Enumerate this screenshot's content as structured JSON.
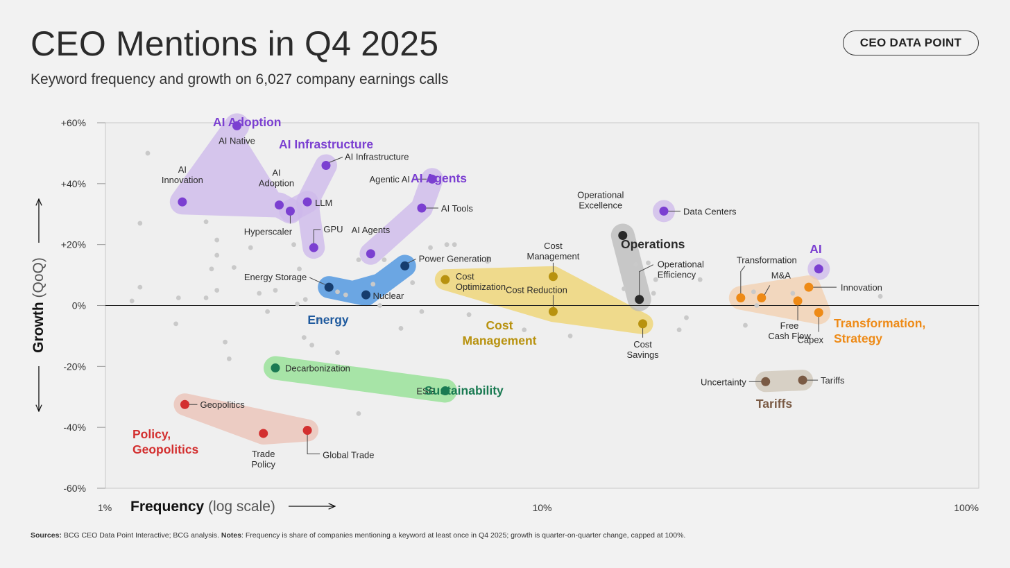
{
  "header": {
    "title": "CEO Mentions in Q4 2025",
    "subtitle": "Keyword frequency and growth on 6,027 company earnings calls",
    "badge": "CEO DATA POINT"
  },
  "footnote": {
    "sources_label": "Sources:",
    "sources_text": " BCG CEO Data Point Interactive; BCG analysis. ",
    "notes_label": "Notes",
    "notes_text": ": Frequency is share of companies mentioning a keyword at least once in Q4 2025; growth is quarter-on-quarter change, capped at 100%."
  },
  "chart_data": {
    "type": "scatter",
    "title": "CEO Mentions in Q4 2025",
    "xlabel": "Frequency",
    "xlabel_note": "(log scale)",
    "x_scale": "log",
    "xlim": [
      1,
      100
    ],
    "x_ticks": [
      {
        "value": 1,
        "label": "1%"
      },
      {
        "value": 10,
        "label": "10%"
      },
      {
        "value": 100,
        "label": "100%"
      }
    ],
    "ylabel": "Growth",
    "ylabel_note": "(QoQ)",
    "ylim": [
      -60,
      60
    ],
    "y_ticks": [
      {
        "value": 60,
        "label": "+60%"
      },
      {
        "value": 40,
        "label": "+40%"
      },
      {
        "value": 20,
        "label": "+20%"
      },
      {
        "value": 0,
        "label": "0%"
      },
      {
        "value": -20,
        "label": "-20%"
      },
      {
        "value": -40,
        "label": "-40%"
      },
      {
        "value": -60,
        "label": "-60%"
      }
    ],
    "groups": [
      {
        "name": "AI Adoption",
        "label_lines": [
          "AI Adoption"
        ],
        "color": "#7b3fd1",
        "fill": "#cdb8eb",
        "label_anchor": "start"
      },
      {
        "name": "AI Infrastructure",
        "label_lines": [
          "AI Infrastructure"
        ],
        "color": "#7b3fd1",
        "fill": "#cdb8eb",
        "label_anchor": "start"
      },
      {
        "name": "AI Agents",
        "label_lines": [
          "AI Agents"
        ],
        "color": "#7b3fd1",
        "fill": "#cdb8eb",
        "label_anchor": "start"
      },
      {
        "name": "AI",
        "label_lines": [
          "AI"
        ],
        "color": "#7b3fd1",
        "fill": "#cdb8eb",
        "label_anchor": "middle"
      },
      {
        "name": "Energy",
        "label_lines": [
          "Energy"
        ],
        "color": "#1f5a9e",
        "fill": "#3f8ee0",
        "label_anchor": "middle"
      },
      {
        "name": "Cost Management",
        "label_lines": [
          "Cost",
          "Management"
        ],
        "color": "#b8920f",
        "fill": "#f0d36b",
        "label_anchor": "middle"
      },
      {
        "name": "Operations",
        "label_lines": [
          "Operations"
        ],
        "color": "#2a2a2a",
        "fill": "#b9b9b9",
        "label_anchor": "start"
      },
      {
        "name": "Transformation, Strategy",
        "label_lines": [
          "Transformation,",
          "Strategy"
        ],
        "color": "#ee8a16",
        "fill": "#f3cfae",
        "label_anchor": "start"
      },
      {
        "name": "Sustainability",
        "label_lines": [
          "Sustainability"
        ],
        "color": "#1a7a52",
        "fill": "#8fe08f",
        "label_anchor": "start"
      },
      {
        "name": "Tariffs",
        "label_lines": [
          "Tariffs"
        ],
        "color": "#7a5a44",
        "fill": "#cfc6b7",
        "label_anchor": "middle"
      },
      {
        "name": "Policy, Geopolitics",
        "label_lines": [
          "Policy,",
          "Geopolitics"
        ],
        "color": "#d32f2f",
        "fill": "#ecc1b5",
        "label_anchor": "start"
      }
    ],
    "series": [
      {
        "name": "AI Native",
        "group": "AI Adoption",
        "x": 2.0,
        "y": 59,
        "color": "#7b3fd1"
      },
      {
        "name": "AI Innovation",
        "group": "AI Adoption",
        "x": 1.5,
        "y": 34,
        "color": "#7b3fd1"
      },
      {
        "name": "AI Adoption",
        "group": "AI Adoption",
        "x": 2.5,
        "y": 33,
        "color": "#7b3fd1"
      },
      {
        "name": "Hyperscaler",
        "group": "AI Adoption",
        "x": 2.65,
        "y": 31,
        "color": "#7b3fd1"
      },
      {
        "name": "AI Infrastructure",
        "group": "AI Infrastructure",
        "x": 3.2,
        "y": 46,
        "color": "#7b3fd1"
      },
      {
        "name": "LLM",
        "group": "AI Infrastructure",
        "x": 2.9,
        "y": 34,
        "color": "#7b3fd1"
      },
      {
        "name": "GPU",
        "group": "AI Infrastructure",
        "x": 3.0,
        "y": 19,
        "color": "#7b3fd1"
      },
      {
        "name": "Agentic AI",
        "group": "AI Agents",
        "x": 5.6,
        "y": 41.5,
        "color": "#7b3fd1"
      },
      {
        "name": "AI Tools",
        "group": "AI Agents",
        "x": 5.3,
        "y": 32,
        "color": "#7b3fd1"
      },
      {
        "name": "AI Agents",
        "group": "AI Agents",
        "x": 4.05,
        "y": 17,
        "color": "#7b3fd1"
      },
      {
        "name": "Data Centers",
        "group": "AI",
        "x": 19.0,
        "y": 31,
        "color": "#7b3fd1"
      },
      {
        "name": "AI",
        "group": "AI",
        "x": 43.0,
        "y": 12,
        "color": "#7b3fd1"
      },
      {
        "name": "Power Generation",
        "group": "Energy",
        "x": 4.85,
        "y": 13,
        "color": "#163d6e"
      },
      {
        "name": "Energy Storage",
        "group": "Energy",
        "x": 3.25,
        "y": 6,
        "color": "#163d6e"
      },
      {
        "name": "Nuclear",
        "group": "Energy",
        "x": 3.95,
        "y": 3.5,
        "color": "#163d6e"
      },
      {
        "name": "Cost Optimization",
        "group": "Cost Management",
        "x": 6.0,
        "y": 8.5,
        "color": "#b8920f"
      },
      {
        "name": "Cost Management",
        "group": "Cost Management",
        "x": 10.6,
        "y": 9.5,
        "color": "#b8920f"
      },
      {
        "name": "Cost Reduction",
        "group": "Cost Management",
        "x": 10.6,
        "y": -2,
        "color": "#b8920f"
      },
      {
        "name": "Cost Savings",
        "group": "Cost Management",
        "x": 17.0,
        "y": -6,
        "color": "#b8920f"
      },
      {
        "name": "Operational Excellence",
        "group": "Operations",
        "x": 15.3,
        "y": 23,
        "color": "#2a2a2a"
      },
      {
        "name": "Operational Efficiency",
        "group": "Operations",
        "x": 16.7,
        "y": 2,
        "color": "#2a2a2a"
      },
      {
        "name": "Transformation",
        "group": "Transformation, Strategy",
        "x": 28.5,
        "y": 2.5,
        "color": "#ee8a16"
      },
      {
        "name": "M&A",
        "group": "Transformation, Strategy",
        "x": 31.8,
        "y": 2.5,
        "color": "#ee8a16"
      },
      {
        "name": "Free Cash Flow",
        "group": "Transformation, Strategy",
        "x": 38.5,
        "y": 1.5,
        "color": "#ee8a16"
      },
      {
        "name": "Innovation",
        "group": "Transformation, Strategy",
        "x": 40.8,
        "y": 6,
        "color": "#ee8a16"
      },
      {
        "name": "Capex",
        "group": "Transformation, Strategy",
        "x": 43.0,
        "y": -2.3,
        "color": "#ee8a16"
      },
      {
        "name": "Decarbonization",
        "group": "Sustainability",
        "x": 2.45,
        "y": -20.5,
        "color": "#1a7a52"
      },
      {
        "name": "ESG",
        "group": "Sustainability",
        "x": 6.0,
        "y": -28,
        "color": "#1a7a52"
      },
      {
        "name": "Uncertainty",
        "group": "Tariffs",
        "x": 32.5,
        "y": -25,
        "color": "#7a5a44"
      },
      {
        "name": "Tariffs",
        "group": "Tariffs",
        "x": 39.5,
        "y": -24.5,
        "color": "#7a5a44"
      },
      {
        "name": "Geopolitics",
        "group": "Policy, Geopolitics",
        "x": 1.52,
        "y": -32.5,
        "color": "#d32f2f"
      },
      {
        "name": "Trade Policy",
        "group": "Policy, Geopolitics",
        "x": 2.3,
        "y": -42,
        "color": "#d32f2f"
      },
      {
        "name": "Global Trade",
        "group": "Policy, Geopolitics",
        "x": 2.9,
        "y": -41,
        "color": "#d32f2f"
      }
    ],
    "background_points": [
      {
        "x": 1.25,
        "y": 50
      },
      {
        "x": 1.2,
        "y": 27
      },
      {
        "x": 1.2,
        "y": 6
      },
      {
        "x": 1.15,
        "y": 1.5
      },
      {
        "x": 1.47,
        "y": 2.5
      },
      {
        "x": 1.45,
        "y": -6
      },
      {
        "x": 1.7,
        "y": 27.5
      },
      {
        "x": 1.7,
        "y": 2.5
      },
      {
        "x": 1.75,
        "y": 12
      },
      {
        "x": 1.8,
        "y": 21.5
      },
      {
        "x": 1.8,
        "y": 16.5
      },
      {
        "x": 1.8,
        "y": 5
      },
      {
        "x": 1.88,
        "y": -12
      },
      {
        "x": 1.92,
        "y": -17.5
      },
      {
        "x": 1.97,
        "y": 12.5
      },
      {
        "x": 2.15,
        "y": 19
      },
      {
        "x": 2.25,
        "y": 4
      },
      {
        "x": 2.35,
        "y": -2
      },
      {
        "x": 2.45,
        "y": 5
      },
      {
        "x": 2.7,
        "y": 20
      },
      {
        "x": 2.75,
        "y": 0.5
      },
      {
        "x": 2.78,
        "y": 12
      },
      {
        "x": 2.85,
        "y": -10.5
      },
      {
        "x": 2.87,
        "y": 2
      },
      {
        "x": 2.97,
        "y": -13
      },
      {
        "x": 3.07,
        "y": -4.5
      },
      {
        "x": 3.4,
        "y": 4.5
      },
      {
        "x": 3.4,
        "y": -15.5
      },
      {
        "x": 3.55,
        "y": 3.5
      },
      {
        "x": 3.8,
        "y": 15
      },
      {
        "x": 3.8,
        "y": -35.5
      },
      {
        "x": 4.1,
        "y": 7
      },
      {
        "x": 4.25,
        "y": 0
      },
      {
        "x": 4.35,
        "y": 15
      },
      {
        "x": 4.75,
        "y": -7.5
      },
      {
        "x": 5.05,
        "y": 7.5
      },
      {
        "x": 5.3,
        "y": -2
      },
      {
        "x": 5.55,
        "y": 19
      },
      {
        "x": 6.05,
        "y": 20
      },
      {
        "x": 6.3,
        "y": 20
      },
      {
        "x": 6.8,
        "y": -3
      },
      {
        "x": 7.5,
        "y": 14.5
      },
      {
        "x": 7.5,
        "y": 15.5
      },
      {
        "x": 9.1,
        "y": -8
      },
      {
        "x": 11.6,
        "y": -10
      },
      {
        "x": 15.4,
        "y": 5.5
      },
      {
        "x": 16.4,
        "y": 13.5
      },
      {
        "x": 17.5,
        "y": 14
      },
      {
        "x": 18.0,
        "y": 4
      },
      {
        "x": 18.2,
        "y": 8.5
      },
      {
        "x": 20.6,
        "y": -8
      },
      {
        "x": 21.4,
        "y": -4
      },
      {
        "x": 23.0,
        "y": 8.5
      },
      {
        "x": 29.2,
        "y": -6.5
      },
      {
        "x": 30.5,
        "y": 4.5
      },
      {
        "x": 31.0,
        "y": 0
      },
      {
        "x": 37.5,
        "y": 4
      },
      {
        "x": 59.5,
        "y": 3
      }
    ]
  }
}
